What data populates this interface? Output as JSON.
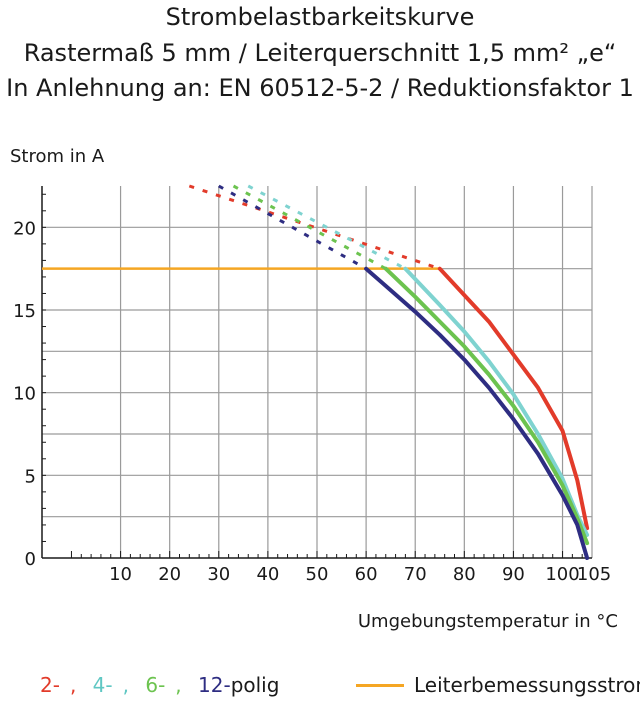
{
  "header": {
    "line1": "Strombelastbarkeitskurve",
    "line2": "Rastermaß 5 mm / Leiterquerschnitt 1,5 mm² „e“",
    "line3": "In Anlehnung an: EN 60512-5-2 / Reduktionsfaktor 1"
  },
  "chart_data": {
    "type": "line",
    "ylabel": "Strom in A",
    "xlabel": "Umgebungstemperatur in °C",
    "xlim": [
      -6,
      106
    ],
    "ylim": [
      0,
      22.5
    ],
    "x_ticks": [
      "10",
      "20",
      "30",
      "40",
      "50",
      "60",
      "70",
      "80",
      "90",
      "100",
      "105"
    ],
    "y_ticks": [
      "0",
      "5",
      "10",
      "15",
      "20"
    ],
    "grid": true,
    "rated_current": {
      "name": "Leiterbemessungsstrom",
      "value": 17.5,
      "color": "#f5a623"
    },
    "series": [
      {
        "name": "2-",
        "color": "#e23b2a",
        "dashed": [
          [
            24,
            22.5
          ],
          [
            75,
            17.5
          ]
        ],
        "x": [
          75,
          80,
          85,
          90,
          95,
          100,
          103,
          105
        ],
        "y": [
          17.5,
          15.9,
          14.3,
          12.3,
          10.3,
          7.7,
          4.7,
          1.8
        ]
      },
      {
        "name": "4-",
        "color": "#7fd3d0",
        "dashed": [
          [
            36,
            22.5
          ],
          [
            68,
            17.5
          ]
        ],
        "x": [
          68,
          75,
          80,
          85,
          90,
          95,
          100,
          103,
          105
        ],
        "y": [
          17.5,
          15.3,
          13.7,
          11.9,
          9.9,
          7.5,
          4.8,
          2.6,
          1.4
        ]
      },
      {
        "name": "6-",
        "color": "#6cc34f",
        "dashed": [
          [
            33,
            22.5
          ],
          [
            64,
            17.5
          ]
        ],
        "x": [
          64,
          70,
          75,
          80,
          85,
          90,
          95,
          100,
          103,
          105
        ],
        "y": [
          17.5,
          15.8,
          14.3,
          12.8,
          11.1,
          9.2,
          7.0,
          4.4,
          2.4,
          0.9
        ]
      },
      {
        "name": "12-",
        "color": "#2e2d82",
        "dashed": [
          [
            30,
            22.5
          ],
          [
            60,
            17.5
          ]
        ],
        "x": [
          60,
          65,
          70,
          75,
          80,
          85,
          90,
          95,
          100,
          103,
          105
        ],
        "y": [
          17.5,
          16.2,
          14.9,
          13.5,
          12.0,
          10.3,
          8.4,
          6.3,
          3.8,
          2.0,
          0
        ]
      }
    ]
  },
  "legend": {
    "suffix": "polig"
  }
}
